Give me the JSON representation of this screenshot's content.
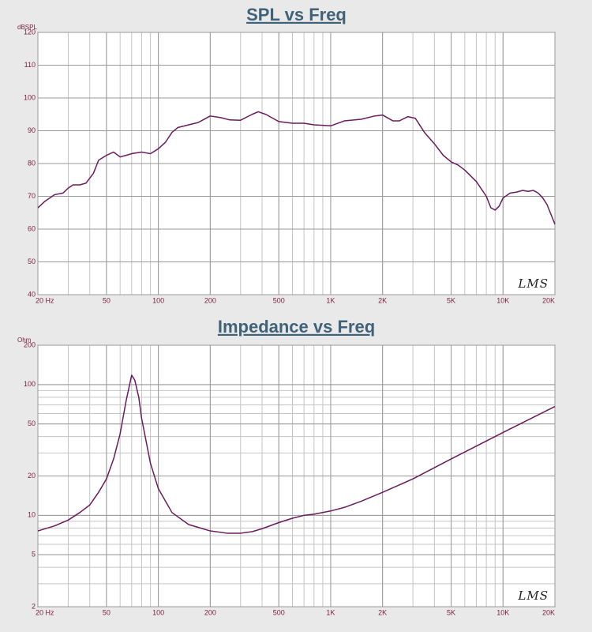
{
  "chart_data": [
    {
      "type": "line",
      "title": "SPL vs Freq",
      "y_label": "dBSPL",
      "watermark": "LMS",
      "xscale": "log",
      "yscale": "linear",
      "grid": true,
      "minor_grid": true,
      "xlim": [
        20,
        20000
      ],
      "ylim": [
        40,
        120
      ],
      "xticks": [
        {
          "value": 20,
          "label": "20 Hz"
        },
        50,
        100,
        200,
        500,
        {
          "value": 1000,
          "label": "1K"
        },
        {
          "value": 2000,
          "label": "2K"
        },
        {
          "value": 5000,
          "label": "5K"
        },
        {
          "value": 10000,
          "label": "10K"
        },
        {
          "value": 20000,
          "label": "20K"
        }
      ],
      "yticks": [
        40,
        50,
        60,
        70,
        80,
        90,
        100,
        110,
        120
      ],
      "x": [
        20,
        22,
        25,
        28,
        30,
        32,
        35,
        38,
        42,
        45,
        50,
        55,
        60,
        65,
        70,
        80,
        90,
        100,
        110,
        120,
        130,
        150,
        170,
        200,
        230,
        260,
        300,
        350,
        380,
        420,
        500,
        600,
        700,
        800,
        1000,
        1200,
        1500,
        1800,
        2000,
        2300,
        2500,
        2800,
        3100,
        3500,
        4000,
        4500,
        5000,
        5500,
        6000,
        7000,
        8000,
        8500,
        9000,
        9500,
        10000,
        11000,
        12000,
        13000,
        14000,
        15000,
        16000,
        17000,
        18000,
        20000
      ],
      "series": [
        {
          "color": "#6a1b5c",
          "values": [
            66.5,
            68.5,
            70.5,
            71,
            72.5,
            73.5,
            73.5,
            74,
            77,
            81,
            82.5,
            83.5,
            82,
            82.5,
            83,
            83.5,
            83,
            84.5,
            86.5,
            89.5,
            91,
            91.8,
            92.5,
            94.5,
            94,
            93.3,
            93.2,
            95,
            95.8,
            95,
            92.8,
            92.3,
            92.3,
            91.8,
            91.5,
            93,
            93.5,
            94.5,
            94.8,
            93,
            93,
            94.3,
            93.8,
            89.5,
            86,
            82.5,
            80.5,
            79.5,
            78,
            74.5,
            70,
            66.5,
            65.8,
            67,
            69.5,
            71,
            71.3,
            71.8,
            71.5,
            71.8,
            71,
            69.5,
            67.5,
            61.5
          ]
        }
      ]
    },
    {
      "type": "line",
      "title": "Impedance vs Freq",
      "y_label": "Ohm",
      "watermark": "LMS",
      "xscale": "log",
      "yscale": "log",
      "grid": true,
      "minor_grid": true,
      "xlim": [
        20,
        20000
      ],
      "ylim": [
        2,
        200
      ],
      "xticks": [
        {
          "value": 20,
          "label": "20 Hz"
        },
        50,
        100,
        200,
        500,
        {
          "value": 1000,
          "label": "1K"
        },
        {
          "value": 2000,
          "label": "2K"
        },
        {
          "value": 5000,
          "label": "5K"
        },
        {
          "value": 10000,
          "label": "10K"
        },
        {
          "value": 20000,
          "label": "20K"
        }
      ],
      "yticks": [
        2,
        5,
        10,
        20,
        50,
        100,
        200
      ],
      "x": [
        20,
        25,
        30,
        35,
        40,
        45,
        50,
        55,
        60,
        65,
        70,
        73,
        77,
        80,
        90,
        100,
        120,
        150,
        200,
        250,
        300,
        350,
        400,
        500,
        600,
        700,
        800,
        1000,
        1200,
        1500,
        2000,
        3000,
        5000,
        10000,
        20000
      ],
      "series": [
        {
          "color": "#6a1b5c",
          "values": [
            7.6,
            8.3,
            9.2,
            10.5,
            12,
            15,
            19,
            27,
            42,
            75,
            118,
            108,
            80,
            55,
            25,
            16,
            10.5,
            8.5,
            7.6,
            7.3,
            7.3,
            7.5,
            7.9,
            8.8,
            9.5,
            10,
            10.2,
            10.8,
            11.5,
            12.8,
            15,
            19,
            27,
            43,
            68
          ]
        }
      ]
    }
  ]
}
